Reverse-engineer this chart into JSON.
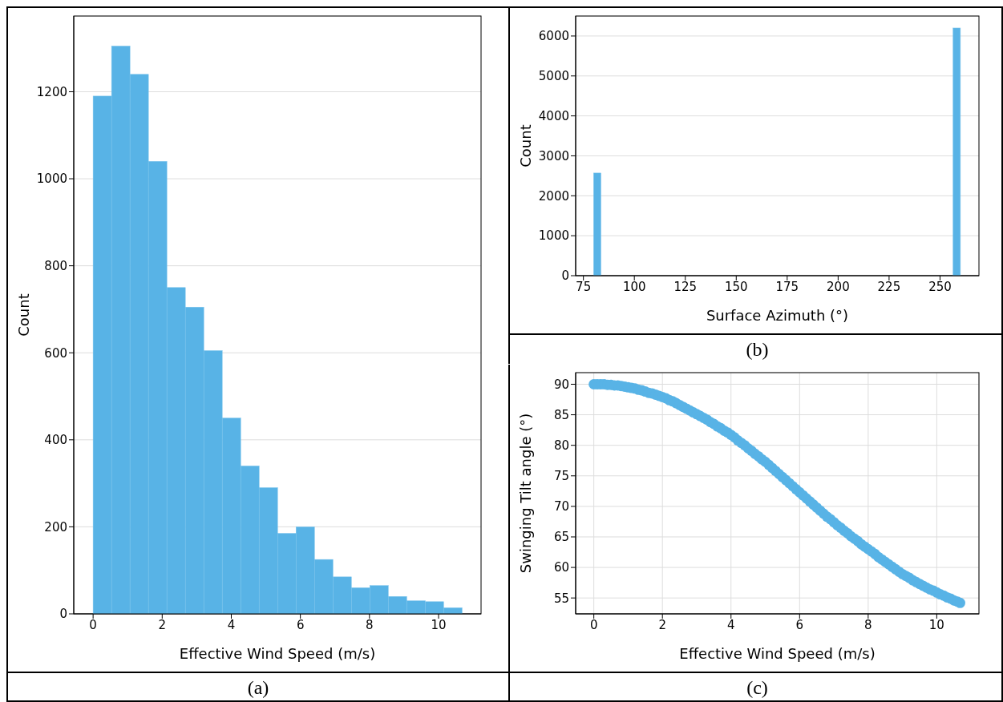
{
  "chart_data": [
    {
      "type": "histogram",
      "xlabel": "Effective Wind Speed (m/s)",
      "ylabel": "Count",
      "annotations": [
        "(a)"
      ],
      "bins": [
        0,
        0.534,
        1.068,
        1.602,
        2.136,
        2.67,
        3.204,
        3.738,
        4.272,
        4.806,
        5.34,
        5.874,
        6.408,
        6.942,
        7.476,
        8.01,
        8.544,
        9.078,
        9.612,
        10.146,
        10.68
      ],
      "values": [
        1190,
        1305,
        1240,
        1040,
        750,
        705,
        605,
        450,
        340,
        290,
        185,
        200,
        125,
        85,
        60,
        65,
        40,
        30,
        28,
        14
      ],
      "color": "#58b3e6",
      "xlim": [
        -0.56,
        11.23
      ],
      "ylim": [
        0,
        1374
      ],
      "xticks": [
        0,
        2,
        4,
        6,
        8,
        10
      ],
      "yticks": [
        0,
        200,
        400,
        600,
        800,
        1000,
        1200
      ],
      "grid": "y"
    },
    {
      "type": "histogram",
      "xlabel": "Surface Azimuth (°)",
      "ylabel": "Count",
      "annotations": [
        "(b)"
      ],
      "bins": [
        80,
        83.6,
        87.2,
        90.8,
        94.4,
        98,
        101.6,
        105.2,
        108.8,
        112.4,
        116,
        119.6,
        123.2,
        126.8,
        130.4,
        134,
        137.6,
        141.2,
        144.8,
        148.4,
        152,
        155.6,
        159.2,
        162.8,
        166.4,
        170,
        173.6,
        177.2,
        180.8,
        184.4,
        188,
        191.6,
        195.2,
        198.8,
        202.4,
        206,
        209.6,
        213.2,
        216.8,
        220.4,
        224,
        227.6,
        231.2,
        234.8,
        238.4,
        242,
        245.6,
        249.2,
        252.8,
        256.4,
        260
      ],
      "values": [
        2570,
        0,
        0,
        0,
        0,
        0,
        0,
        0,
        0,
        0,
        0,
        0,
        0,
        0,
        0,
        0,
        0,
        0,
        0,
        0,
        0,
        0,
        0,
        0,
        0,
        0,
        0,
        0,
        0,
        0,
        0,
        0,
        0,
        0,
        0,
        0,
        0,
        0,
        0,
        0,
        0,
        0,
        0,
        0,
        0,
        0,
        0,
        0,
        0,
        6200
      ],
      "color": "#58b3e6",
      "xlim": [
        71.2,
        269.1
      ],
      "ylim": [
        0,
        6500
      ],
      "xticks": [
        75,
        100,
        125,
        150,
        175,
        200,
        225,
        250
      ],
      "yticks": [
        0,
        1000,
        2000,
        3000,
        4000,
        5000,
        6000
      ],
      "grid": "y"
    },
    {
      "type": "scatter",
      "xlabel": "Effective Wind Speed (m/s)",
      "ylabel": "Swinging Tilt angle (°)",
      "annotations": [
        "(c)"
      ],
      "x": [
        0,
        0.1,
        0.2,
        0.3,
        0.4,
        0.5,
        0.6,
        0.7,
        0.8,
        0.9,
        1,
        1.1,
        1.2,
        1.3,
        1.4,
        1.5,
        1.6,
        1.7,
        1.8,
        1.9,
        2,
        2.1,
        2.2,
        2.3,
        2.4,
        2.5,
        2.6,
        2.7,
        2.8,
        2.9,
        3,
        3.1,
        3.2,
        3.3,
        3.4,
        3.5,
        3.6,
        3.7,
        3.8,
        3.9,
        4,
        4.1,
        4.2,
        4.3,
        4.4,
        4.5,
        4.6,
        4.7,
        4.8,
        4.9,
        5,
        5.1,
        5.2,
        5.3,
        5.4,
        5.5,
        5.6,
        5.7,
        5.8,
        5.9,
        6,
        6.1,
        6.2,
        6.3,
        6.4,
        6.5,
        6.6,
        6.7,
        6.8,
        6.9,
        7,
        7.1,
        7.2,
        7.3,
        7.4,
        7.5,
        7.6,
        7.7,
        7.8,
        7.9,
        8,
        8.1,
        8.2,
        8.3,
        8.4,
        8.5,
        8.6,
        8.7,
        8.8,
        8.9,
        9,
        9.1,
        9.2,
        9.3,
        9.4,
        9.5,
        9.6,
        9.7,
        9.8,
        9.9,
        10,
        10.1,
        10.2,
        10.3,
        10.4,
        10.5,
        10.6,
        10.68
      ],
      "values": [
        90,
        90,
        90,
        90,
        89.9,
        89.9,
        89.8,
        89.8,
        89.7,
        89.6,
        89.5,
        89.4,
        89.3,
        89.1,
        89,
        88.8,
        88.6,
        88.5,
        88.3,
        88.1,
        87.9,
        87.7,
        87.4,
        87.2,
        86.9,
        86.6,
        86.3,
        86,
        85.7,
        85.4,
        85.1,
        84.8,
        84.5,
        84.2,
        83.8,
        83.5,
        83.1,
        82.8,
        82.4,
        82.1,
        81.7,
        81.3,
        80.8,
        80.4,
        80,
        79.5,
        79.1,
        78.6,
        78.2,
        77.7,
        77.3,
        76.8,
        76.3,
        75.8,
        75.3,
        74.8,
        74.3,
        73.8,
        73.3,
        72.8,
        72.3,
        71.8,
        71.3,
        70.8,
        70.3,
        69.8,
        69.3,
        68.8,
        68.3,
        67.9,
        67.4,
        66.9,
        66.5,
        66,
        65.6,
        65.1,
        64.7,
        64.3,
        63.8,
        63.4,
        63,
        62.6,
        62.2,
        61.7,
        61.3,
        60.9,
        60.5,
        60.1,
        59.7,
        59.3,
        58.9,
        58.6,
        58.3,
        57.9,
        57.6,
        57.3,
        57,
        56.7,
        56.4,
        56.2,
        55.9,
        55.6,
        55.4,
        55.1,
        54.9,
        54.6,
        54.4,
        54.2
      ],
      "color": "#58b3e6",
      "marker": "circle",
      "xlim": [
        -0.53,
        11.23
      ],
      "ylim": [
        52.4,
        91.9
      ],
      "xticks": [
        0,
        2,
        4,
        6,
        8,
        10
      ],
      "yticks": [
        55,
        60,
        65,
        70,
        75,
        80,
        85,
        90
      ],
      "grid": true
    }
  ]
}
